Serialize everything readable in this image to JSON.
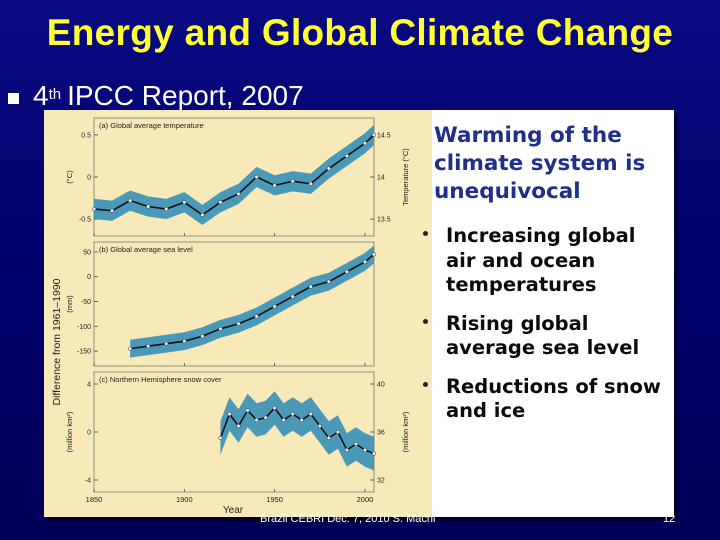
{
  "slide": {
    "title": "Energy and Global Climate Change",
    "bullet_main": "4",
    "bullet_sup": "th",
    "bullet_rest": "IPCC Report, 2007",
    "footer_text": "Brazil CEBRI Dec. 7, 2010 S. Machi",
    "page_number": "12"
  },
  "summary": {
    "headline": "Warming of the climate system is unequivocal",
    "points": [
      "Increasing global air and ocean temperatures",
      "Rising global average sea level",
      "Reductions of snow and ice"
    ]
  },
  "figure_text": {
    "shared_ylabel": "Difference from 1961–1990",
    "xlabel": "Year"
  },
  "chart_data": [
    {
      "type": "line",
      "title": "(a) Global average temperature",
      "ylabel": "(°C)",
      "ylabel_right": "Temperature (°C)",
      "ylim": [
        -0.7,
        0.7
      ],
      "yticks": [
        0.5,
        0.0,
        -0.5
      ],
      "yticks_right": [
        14.5,
        14.0,
        13.5
      ],
      "xlim": [
        1850,
        2005
      ],
      "x": [
        1850,
        1860,
        1870,
        1880,
        1890,
        1900,
        1910,
        1920,
        1930,
        1940,
        1950,
        1960,
        1970,
        1980,
        1990,
        2000,
        2005
      ],
      "values": [
        -0.38,
        -0.4,
        -0.28,
        -0.35,
        -0.38,
        -0.3,
        -0.45,
        -0.3,
        -0.2,
        0.0,
        -0.1,
        -0.05,
        -0.08,
        0.1,
        0.25,
        0.4,
        0.5
      ],
      "band": 0.12
    },
    {
      "type": "line",
      "title": "(b) Global average sea level",
      "ylabel": "(mm)",
      "ylim": [
        -180,
        70
      ],
      "yticks": [
        50,
        0,
        -50,
        -100,
        -150
      ],
      "xlim": [
        1850,
        2005
      ],
      "x": [
        1870,
        1880,
        1890,
        1900,
        1910,
        1920,
        1930,
        1940,
        1950,
        1960,
        1970,
        1980,
        1990,
        2000,
        2005
      ],
      "values": [
        -145,
        -140,
        -135,
        -130,
        -120,
        -105,
        -95,
        -80,
        -60,
        -40,
        -20,
        -10,
        10,
        30,
        45
      ],
      "band": 18
    },
    {
      "type": "line",
      "title": "(c) Northern Hemisphere snow cover",
      "ylabel": "(million km²)",
      "ylabel_right": "(million km²)",
      "ylim": [
        -5,
        5
      ],
      "yticks": [
        4,
        0,
        -4
      ],
      "yticks_right": [
        40,
        36,
        32
      ],
      "xlim": [
        1850,
        2005
      ],
      "x": [
        1920,
        1925,
        1930,
        1935,
        1940,
        1945,
        1950,
        1955,
        1960,
        1965,
        1970,
        1975,
        1980,
        1985,
        1990,
        1995,
        2000,
        2005
      ],
      "values": [
        -0.5,
        1.5,
        0.5,
        1.8,
        1.0,
        1.2,
        2.0,
        1.0,
        1.5,
        1.0,
        1.5,
        0.5,
        -0.5,
        0.0,
        -1.5,
        -1.0,
        -1.5,
        -1.8
      ],
      "band": 1.4
    }
  ],
  "x_axis": {
    "ticks": [
      1850,
      1900,
      1950,
      2000
    ]
  },
  "colors": {
    "panel_bg": "#f7e9b8",
    "band": "#2b8bb8",
    "line": "#111111",
    "title": "#ffff33",
    "headline": "#1f2f8a"
  }
}
